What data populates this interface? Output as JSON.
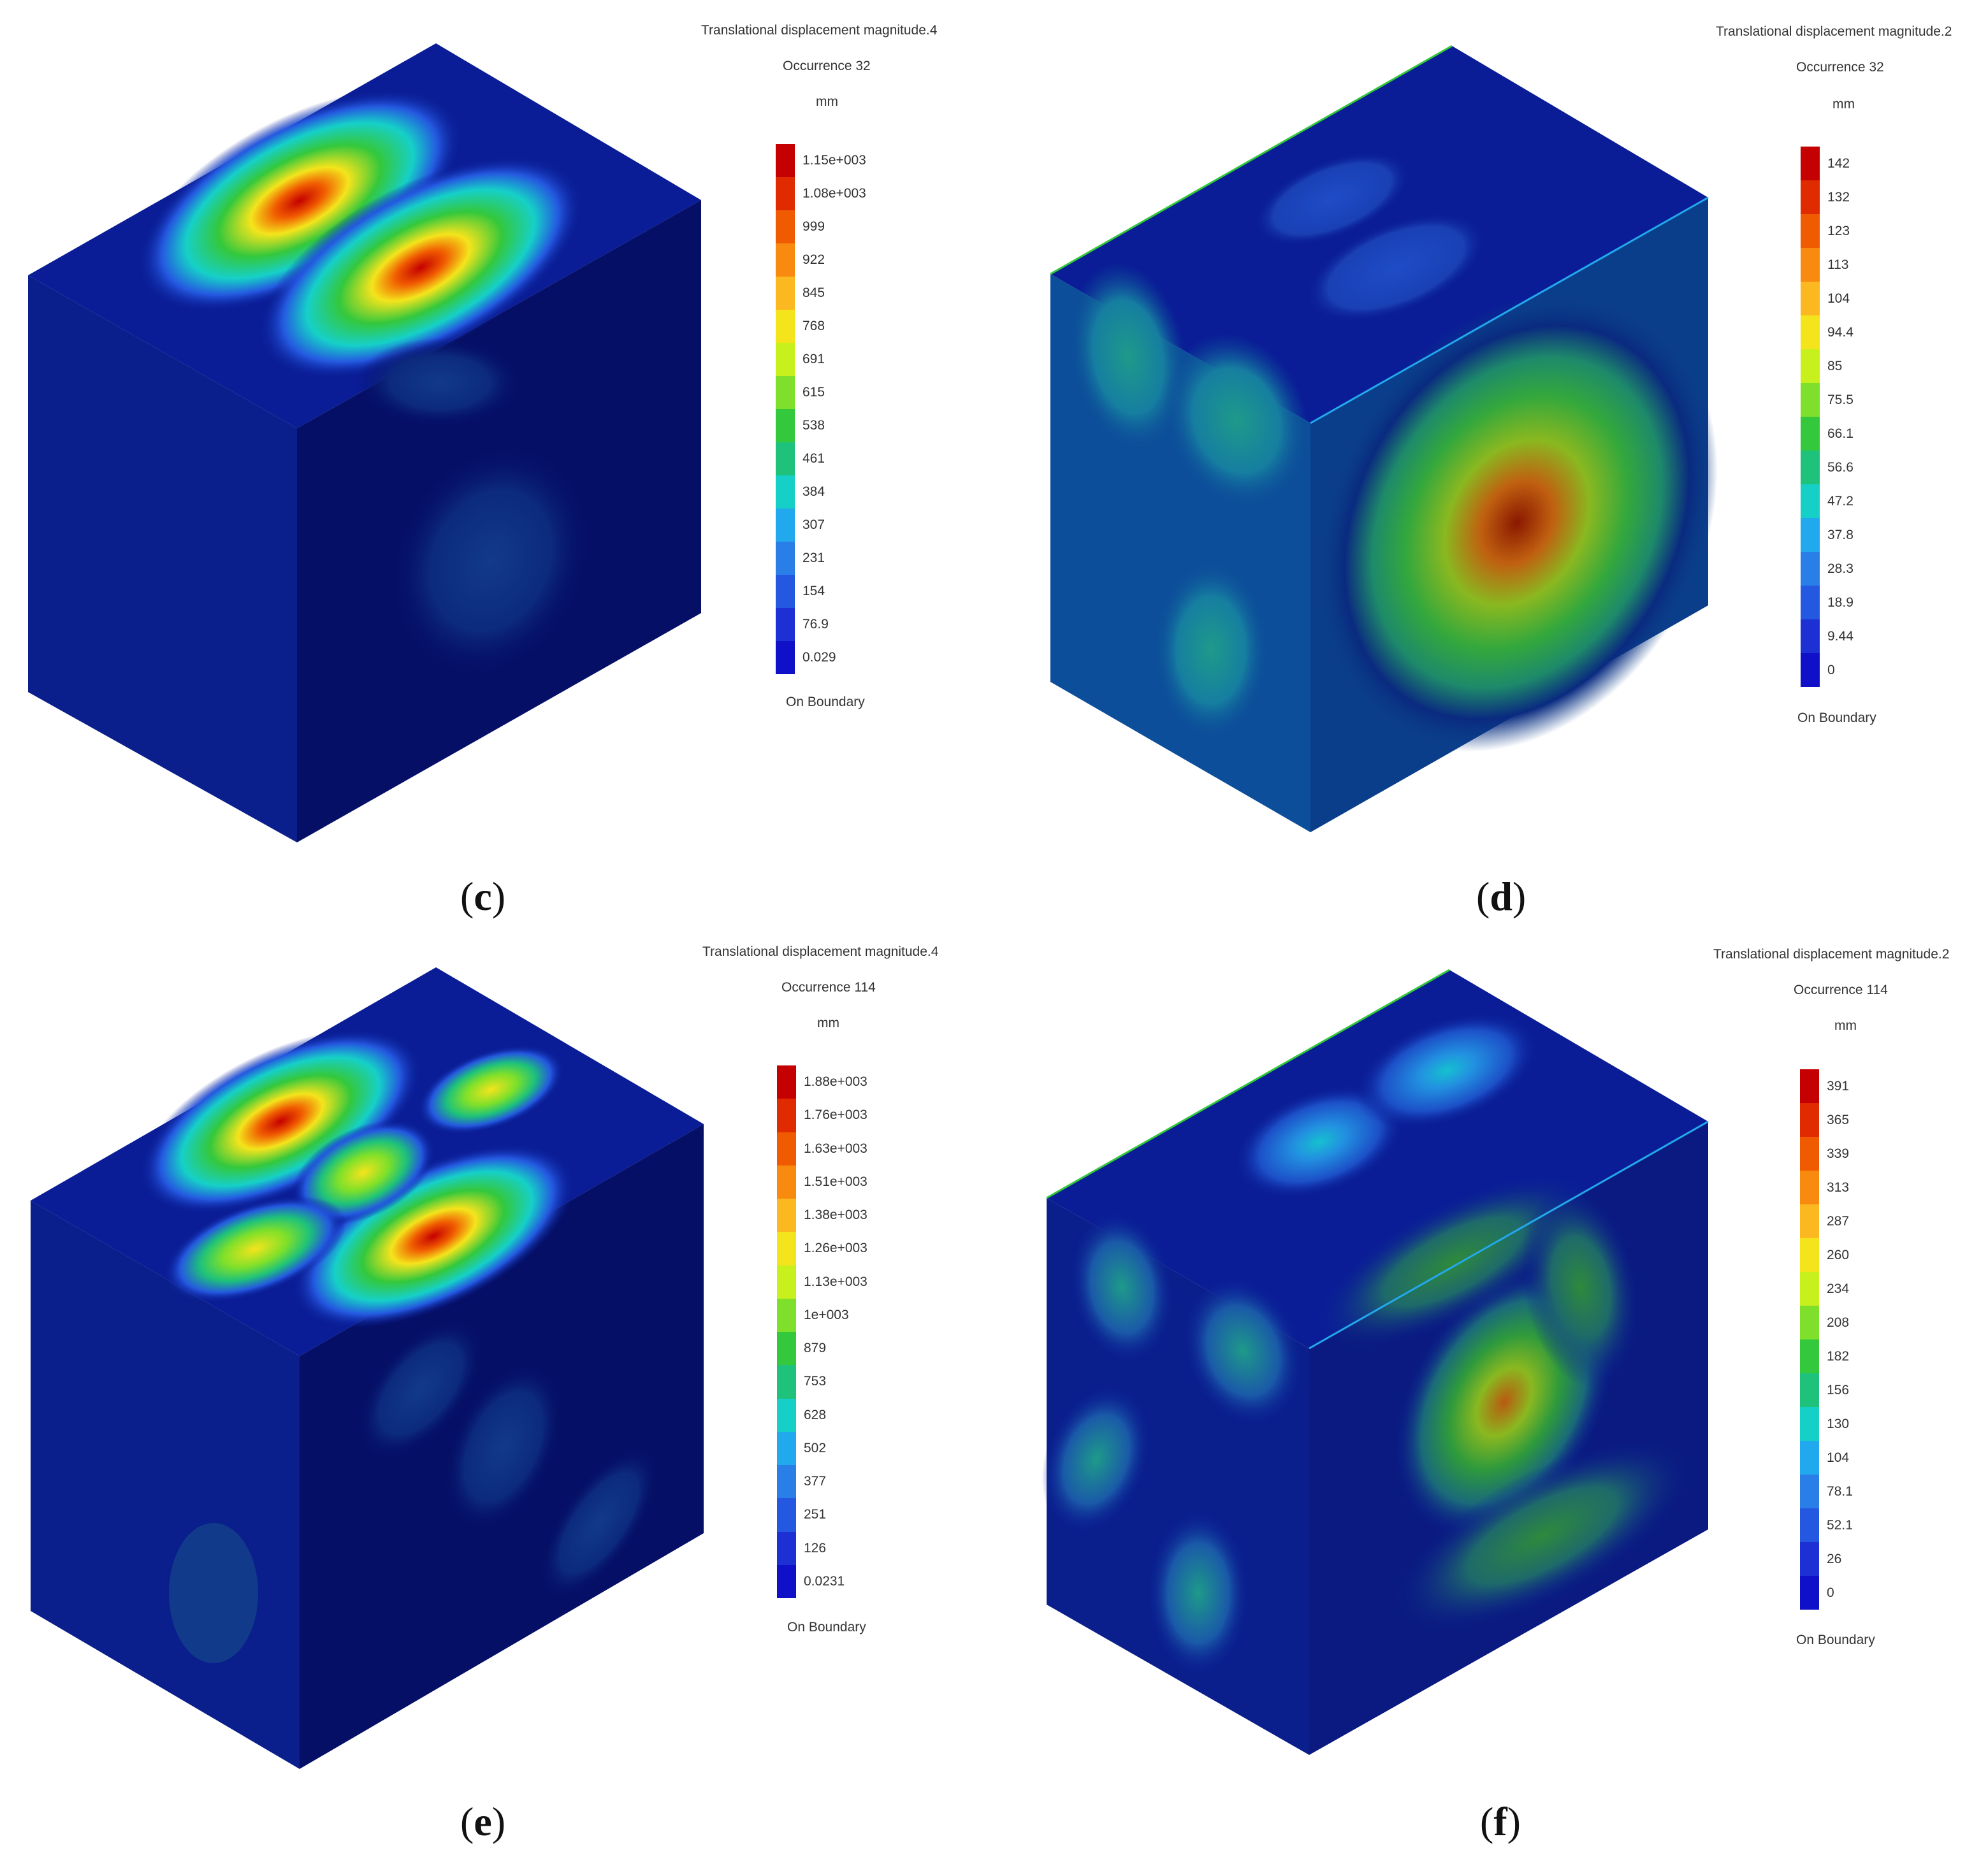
{
  "panels": [
    {
      "id": "c",
      "caption_letter": "c",
      "legend": {
        "title": "Translational displacement magnitude.4",
        "occurrence": "Occurrence 32",
        "unit": "mm",
        "footer": "On Boundary",
        "ticks": [
          "1.15e+003",
          "1.08e+003",
          "999",
          "922",
          "845",
          "768",
          "691",
          "615",
          "538",
          "461",
          "384",
          "307",
          "231",
          "154",
          "76.9",
          "0.029"
        ]
      }
    },
    {
      "id": "d",
      "caption_letter": "d",
      "legend": {
        "title": "Translational displacement magnitude.2",
        "occurrence": "Occurrence 32",
        "unit": "mm",
        "footer": "On Boundary",
        "ticks": [
          "142",
          "132",
          "123",
          "113",
          "104",
          "94.4",
          "85",
          "75.5",
          "66.1",
          "56.6",
          "47.2",
          "37.8",
          "28.3",
          "18.9",
          "9.44",
          "0"
        ]
      }
    },
    {
      "id": "e",
      "caption_letter": "e",
      "legend": {
        "title": "Translational displacement magnitude.4",
        "occurrence": "Occurrence 114",
        "unit": "mm",
        "footer": "On Boundary",
        "ticks": [
          "1.88e+003",
          "1.76e+003",
          "1.63e+003",
          "1.51e+003",
          "1.38e+003",
          "1.26e+003",
          "1.13e+003",
          "1e+003",
          "879",
          "753",
          "628",
          "502",
          "377",
          "251",
          "126",
          "0.0231"
        ]
      }
    },
    {
      "id": "f",
      "caption_letter": "f",
      "legend": {
        "title": "Translational displacement magnitude.2",
        "occurrence": "Occurrence 114",
        "unit": "mm",
        "footer": "On Boundary",
        "ticks": [
          "391",
          "365",
          "339",
          "313",
          "287",
          "260",
          "234",
          "208",
          "182",
          "156",
          "130",
          "104",
          "78.1",
          "52.1",
          "26",
          "0"
        ]
      }
    }
  ],
  "colors": {
    "scale": [
      "#c40000",
      "#e02a00",
      "#f05a00",
      "#f88a10",
      "#fcb820",
      "#f4e41c",
      "#c8f01c",
      "#7ee02a",
      "#34c83c",
      "#1ec27a",
      "#16d0c8",
      "#22a8ec",
      "#2a7ee8",
      "#2458e0",
      "#1c30d4",
      "#1010c8"
    ],
    "top_face": "#0a1d96",
    "left_face": "#0a1f8c",
    "right_face": "#050f66",
    "left_face_d": "#0c4e9a",
    "right_face_d": "#0a3e8a"
  }
}
